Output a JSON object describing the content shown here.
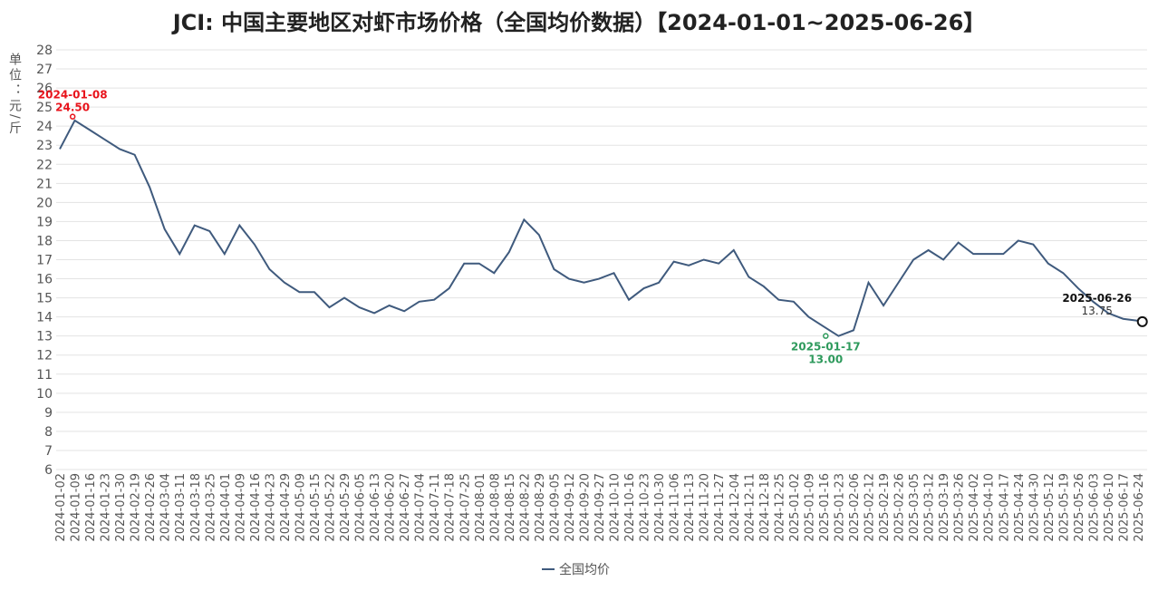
{
  "chart_data": {
    "type": "line",
    "title": "JCI: 中国主要地区对虾市场价格（全国均价数据）【2024-01-01~2025-06-26】",
    "y_label": "单位：元/斤",
    "categories": [
      "2024-01-02",
      "2024-01-09",
      "2024-01-16",
      "2024-01-23",
      "2024-01-30",
      "2024-02-19",
      "2024-02-26",
      "2024-03-04",
      "2024-03-11",
      "2024-03-18",
      "2024-03-25",
      "2024-04-01",
      "2024-04-09",
      "2024-04-16",
      "2024-04-23",
      "2024-04-29",
      "2024-05-09",
      "2024-05-15",
      "2024-05-22",
      "2024-05-29",
      "2024-06-05",
      "2024-06-13",
      "2024-06-20",
      "2024-06-27",
      "2024-07-04",
      "2024-07-11",
      "2024-07-18",
      "2024-07-25",
      "2024-08-01",
      "2024-08-08",
      "2024-08-15",
      "2024-08-22",
      "2024-08-29",
      "2024-09-05",
      "2024-09-12",
      "2024-09-20",
      "2024-09-27",
      "2024-10-10",
      "2024-10-16",
      "2024-10-23",
      "2024-10-30",
      "2024-11-06",
      "2024-11-13",
      "2024-11-20",
      "2024-11-27",
      "2024-12-04",
      "2024-12-11",
      "2024-12-18",
      "2024-12-25",
      "2025-01-02",
      "2025-01-09",
      "2025-01-16",
      "2025-01-23",
      "2025-02-06",
      "2025-02-12",
      "2025-02-19",
      "2025-02-26",
      "2025-03-05",
      "2025-03-12",
      "2025-03-19",
      "2025-03-26",
      "2025-04-02",
      "2025-04-10",
      "2025-04-17",
      "2025-04-24",
      "2025-04-30",
      "2025-05-12",
      "2025-05-19",
      "2025-05-26",
      "2025-06-03",
      "2025-06-10",
      "2025-06-17",
      "2025-06-24"
    ],
    "series": [
      {
        "name": "全国均价",
        "color": "#3f5a7d",
        "values": [
          22.8,
          24.3,
          23.8,
          23.3,
          22.8,
          22.5,
          20.8,
          18.6,
          17.3,
          18.8,
          18.5,
          17.3,
          18.8,
          17.8,
          16.5,
          15.8,
          15.3,
          15.3,
          14.5,
          15.0,
          14.5,
          14.2,
          14.6,
          14.3,
          14.8,
          14.9,
          15.5,
          16.8,
          16.8,
          16.3,
          17.4,
          19.1,
          18.3,
          16.5,
          16.0,
          15.8,
          16.0,
          16.3,
          14.9,
          15.5,
          15.8,
          16.9,
          16.7,
          17.0,
          16.8,
          17.5,
          16.1,
          15.6,
          14.9,
          14.8,
          14.0,
          13.5,
          13.0,
          13.3,
          15.8,
          14.6,
          15.8,
          17.0,
          17.5,
          17.0,
          17.9,
          17.3,
          17.3,
          17.3,
          18.0,
          17.8,
          16.8,
          16.3,
          15.5,
          14.8,
          14.2,
          13.9,
          13.8
        ]
      }
    ],
    "annotations": [
      {
        "x": "2024-01-08",
        "value": 24.5,
        "value_label": "24.50",
        "color": "#e8141c"
      },
      {
        "x": "2025-01-17",
        "value": 13.0,
        "value_label": "13.00",
        "color": "#2e9a5c"
      },
      {
        "x": "2025-06-26",
        "value": 13.75,
        "value_label": "13.75",
        "color": "#111111"
      }
    ],
    "ylim": [
      6,
      28
    ],
    "yticks": [
      6,
      7,
      8,
      9,
      10,
      11,
      12,
      13,
      14,
      15,
      16,
      17,
      18,
      19,
      20,
      21,
      22,
      23,
      24,
      25,
      26,
      27,
      28
    ],
    "grid": true,
    "legend": "bottom"
  }
}
